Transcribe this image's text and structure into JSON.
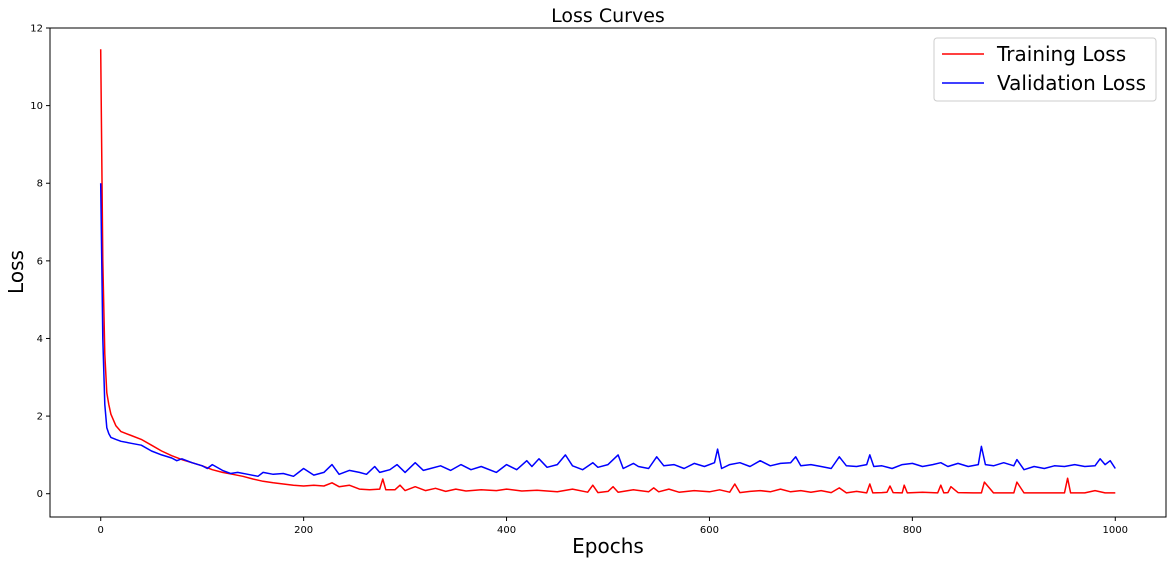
{
  "chart_data": {
    "type": "line",
    "title": "Loss Curves",
    "xlabel": "Epochs",
    "ylabel": "Loss",
    "xlim": [
      -50,
      1050
    ],
    "ylim": [
      -0.6,
      12
    ],
    "xticks": [
      0,
      200,
      400,
      600,
      800,
      1000
    ],
    "yticks": [
      0,
      2,
      4,
      6,
      8,
      10,
      12
    ],
    "grid": false,
    "legend_position": "top-right",
    "series": [
      {
        "name": "Training Loss",
        "color": "#ff0000",
        "x": [
          0,
          2,
          4,
          6,
          8,
          10,
          15,
          20,
          30,
          40,
          50,
          60,
          70,
          80,
          90,
          100,
          110,
          120,
          130,
          140,
          150,
          160,
          170,
          180,
          190,
          200,
          210,
          220,
          228,
          235,
          245,
          255,
          265,
          275,
          278,
          281,
          290,
          295,
          300,
          310,
          320,
          330,
          340,
          350,
          360,
          375,
          390,
          400,
          415,
          430,
          450,
          465,
          480,
          485,
          490,
          500,
          505,
          510,
          525,
          540,
          545,
          550,
          560,
          570,
          585,
          600,
          610,
          620,
          625,
          630,
          640,
          650,
          660,
          670,
          680,
          690,
          700,
          710,
          720,
          728,
          735,
          745,
          755,
          758,
          761,
          770,
          775,
          778,
          781,
          790,
          792,
          795,
          810,
          825,
          828,
          831,
          835,
          838,
          845,
          860,
          868,
          871,
          880,
          895,
          900,
          903,
          910,
          930,
          950,
          953,
          956,
          970,
          980,
          990,
          1000
        ],
        "y": [
          11.45,
          6.0,
          3.6,
          2.6,
          2.3,
          2.05,
          1.75,
          1.6,
          1.5,
          1.4,
          1.25,
          1.1,
          0.98,
          0.88,
          0.8,
          0.72,
          0.62,
          0.55,
          0.5,
          0.45,
          0.38,
          0.32,
          0.28,
          0.25,
          0.22,
          0.2,
          0.22,
          0.2,
          0.28,
          0.18,
          0.22,
          0.12,
          0.1,
          0.12,
          0.38,
          0.1,
          0.1,
          0.22,
          0.08,
          0.18,
          0.08,
          0.14,
          0.06,
          0.12,
          0.07,
          0.1,
          0.08,
          0.12,
          0.07,
          0.09,
          0.05,
          0.12,
          0.04,
          0.22,
          0.03,
          0.06,
          0.18,
          0.04,
          0.1,
          0.05,
          0.15,
          0.05,
          0.12,
          0.04,
          0.08,
          0.05,
          0.1,
          0.04,
          0.25,
          0.03,
          0.06,
          0.08,
          0.05,
          0.12,
          0.05,
          0.08,
          0.04,
          0.08,
          0.03,
          0.15,
          0.02,
          0.06,
          0.02,
          0.25,
          0.02,
          0.03,
          0.04,
          0.2,
          0.03,
          0.02,
          0.22,
          0.02,
          0.04,
          0.02,
          0.22,
          0.02,
          0.03,
          0.18,
          0.03,
          0.02,
          0.02,
          0.3,
          0.02,
          0.02,
          0.02,
          0.3,
          0.02,
          0.02,
          0.02,
          0.4,
          0.02,
          0.02,
          0.08,
          0.02,
          0.02
        ]
      },
      {
        "name": "Validation Loss",
        "color": "#0000ff",
        "x": [
          0,
          2,
          4,
          6,
          8,
          10,
          15,
          20,
          30,
          40,
          50,
          60,
          70,
          75,
          80,
          90,
          100,
          105,
          110,
          120,
          128,
          135,
          145,
          155,
          160,
          170,
          180,
          190,
          195,
          200,
          210,
          220,
          228,
          235,
          245,
          255,
          262,
          270,
          275,
          285,
          292,
          300,
          310,
          318,
          325,
          335,
          345,
          355,
          365,
          375,
          390,
          400,
          410,
          420,
          425,
          432,
          440,
          450,
          458,
          465,
          475,
          485,
          490,
          500,
          510,
          515,
          525,
          530,
          540,
          548,
          555,
          565,
          575,
          585,
          595,
          605,
          608,
          612,
          620,
          630,
          640,
          650,
          660,
          670,
          680,
          685,
          690,
          700,
          710,
          720,
          728,
          735,
          745,
          755,
          758,
          762,
          770,
          780,
          790,
          800,
          810,
          820,
          828,
          835,
          845,
          855,
          865,
          868,
          872,
          880,
          890,
          900,
          903,
          910,
          920,
          930,
          940,
          950,
          960,
          970,
          980,
          985,
          990,
          995,
          1000
        ],
        "y": [
          8.0,
          4.0,
          2.3,
          1.7,
          1.55,
          1.45,
          1.4,
          1.35,
          1.3,
          1.25,
          1.1,
          1.0,
          0.92,
          0.85,
          0.9,
          0.8,
          0.72,
          0.65,
          0.75,
          0.6,
          0.52,
          0.55,
          0.5,
          0.45,
          0.55,
          0.5,
          0.52,
          0.45,
          0.55,
          0.65,
          0.48,
          0.55,
          0.75,
          0.5,
          0.6,
          0.55,
          0.5,
          0.7,
          0.55,
          0.62,
          0.75,
          0.55,
          0.8,
          0.6,
          0.65,
          0.72,
          0.6,
          0.75,
          0.62,
          0.7,
          0.55,
          0.75,
          0.62,
          0.85,
          0.7,
          0.9,
          0.68,
          0.75,
          1.0,
          0.72,
          0.62,
          0.8,
          0.68,
          0.75,
          1.0,
          0.65,
          0.78,
          0.7,
          0.65,
          0.95,
          0.72,
          0.75,
          0.65,
          0.78,
          0.7,
          0.8,
          1.15,
          0.65,
          0.75,
          0.8,
          0.7,
          0.85,
          0.72,
          0.78,
          0.8,
          0.95,
          0.72,
          0.75,
          0.7,
          0.65,
          0.95,
          0.72,
          0.7,
          0.75,
          1.0,
          0.7,
          0.72,
          0.65,
          0.75,
          0.78,
          0.7,
          0.75,
          0.8,
          0.7,
          0.78,
          0.7,
          0.75,
          1.22,
          0.75,
          0.72,
          0.8,
          0.72,
          0.88,
          0.62,
          0.7,
          0.65,
          0.72,
          0.7,
          0.75,
          0.7,
          0.72,
          0.9,
          0.75,
          0.85,
          0.65
        ]
      }
    ]
  }
}
